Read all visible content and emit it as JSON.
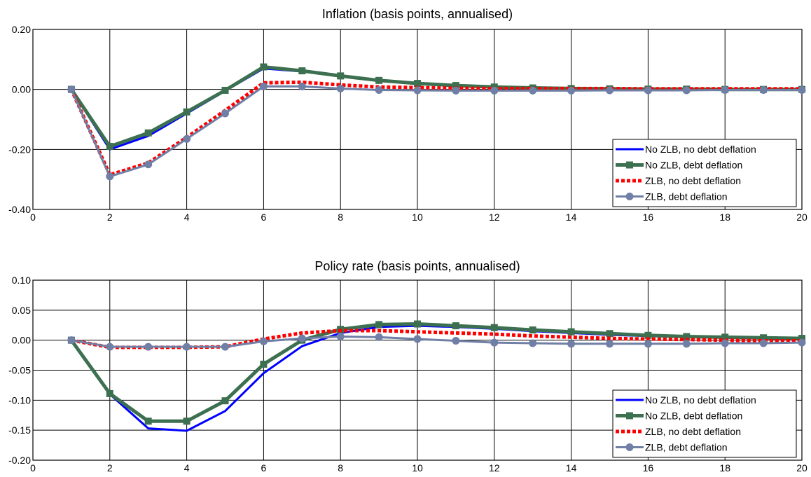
{
  "chart_data": [
    {
      "type": "line",
      "title": "Inflation (basis points, annualised)",
      "xlabel": "",
      "ylabel": "",
      "xlim": [
        0,
        20
      ],
      "ylim": [
        -0.4,
        0.2
      ],
      "xticks": [
        0,
        2,
        4,
        6,
        8,
        10,
        12,
        14,
        16,
        18,
        20
      ],
      "xtick_labels": [
        "0",
        "2",
        "4",
        "6",
        "8",
        "10",
        "12",
        "14",
        "16",
        "18",
        "20"
      ],
      "yticks": [
        -0.4,
        -0.2,
        0.0,
        0.2
      ],
      "ytick_labels": [
        "-0.40",
        "-0.20",
        "0.00",
        "0.20"
      ],
      "grid": true,
      "legend_position": "bottom-right",
      "x": [
        1,
        2,
        3,
        4,
        5,
        6,
        7,
        8,
        9,
        10,
        11,
        12,
        13,
        14,
        15,
        16,
        17,
        18,
        19,
        20
      ],
      "series": [
        {
          "name": "No ZLB, no debt deflation",
          "style": "solid",
          "marker": "none",
          "color": "#0000ff",
          "values": [
            0,
            -0.2,
            -0.155,
            -0.08,
            -0.005,
            0.07,
            0.06,
            0.045,
            0.03,
            0.02,
            0.013,
            0.008,
            0.005,
            0.003,
            0.002,
            0.001,
            0.001,
            0.0,
            0.0,
            0.0
          ]
        },
        {
          "name": "No ZLB, debt deflation",
          "style": "solid",
          "marker": "square",
          "color": "#3c7050",
          "values": [
            0,
            -0.19,
            -0.145,
            -0.075,
            -0.003,
            0.075,
            0.062,
            0.045,
            0.03,
            0.02,
            0.013,
            0.008,
            0.005,
            0.003,
            0.002,
            0.001,
            0.001,
            0.0,
            0.0,
            0.0
          ]
        },
        {
          "name": "ZLB, no debt deflation",
          "style": "dotted",
          "marker": "none",
          "color": "#ff0000",
          "values": [
            0,
            -0.285,
            -0.245,
            -0.16,
            -0.07,
            0.022,
            0.024,
            0.015,
            0.008,
            0.006,
            0.004,
            0.003,
            0.003,
            0.003,
            0.003,
            0.002,
            0.002,
            0.002,
            0.002,
            0.002
          ]
        },
        {
          "name": "ZLB, debt deflation",
          "style": "solid",
          "marker": "circle",
          "color": "#6f7fa5",
          "values": [
            0,
            -0.29,
            -0.25,
            -0.165,
            -0.08,
            0.01,
            0.01,
            0.003,
            -0.002,
            -0.003,
            -0.004,
            -0.004,
            -0.004,
            -0.004,
            -0.003,
            -0.003,
            -0.003,
            -0.002,
            -0.002,
            -0.002
          ]
        }
      ]
    },
    {
      "type": "line",
      "title": "Policy rate (basis points, annualised)",
      "xlabel": "",
      "ylabel": "",
      "xlim": [
        0,
        20
      ],
      "ylim": [
        -0.2,
        0.1
      ],
      "xticks": [
        0,
        2,
        4,
        6,
        8,
        10,
        12,
        14,
        16,
        18,
        20
      ],
      "xtick_labels": [
        "0",
        "2",
        "4",
        "6",
        "8",
        "10",
        "12",
        "14",
        "16",
        "18",
        "20"
      ],
      "yticks": [
        -0.2,
        -0.15,
        -0.1,
        -0.05,
        0.0,
        0.05,
        0.1
      ],
      "ytick_labels": [
        "-0.20",
        "-0.15",
        "-0.10",
        "-0.05",
        "0.00",
        "0.05",
        "0.10"
      ],
      "grid": true,
      "legend_position": "bottom-right",
      "x": [
        1,
        2,
        3,
        4,
        5,
        6,
        7,
        8,
        9,
        10,
        11,
        12,
        13,
        14,
        15,
        16,
        17,
        18,
        19,
        20
      ],
      "series": [
        {
          "name": "No ZLB, no debt deflation",
          "style": "solid",
          "marker": "none",
          "color": "#0000ff",
          "values": [
            0,
            -0.09,
            -0.147,
            -0.151,
            -0.118,
            -0.055,
            -0.01,
            0.012,
            0.022,
            0.024,
            0.022,
            0.019,
            0.015,
            0.012,
            0.009,
            0.007,
            0.005,
            0.004,
            0.003,
            0.002
          ]
        },
        {
          "name": "No ZLB, debt deflation",
          "style": "solid",
          "marker": "square",
          "color": "#3c7050",
          "values": [
            0,
            -0.089,
            -0.135,
            -0.135,
            -0.101,
            -0.04,
            0.0,
            0.018,
            0.026,
            0.027,
            0.024,
            0.021,
            0.017,
            0.014,
            0.011,
            0.008,
            0.006,
            0.005,
            0.004,
            0.003
          ]
        },
        {
          "name": "ZLB, no debt deflation",
          "style": "dotted",
          "marker": "none",
          "color": "#ff0000",
          "values": [
            0,
            -0.012,
            -0.012,
            -0.012,
            -0.011,
            0.002,
            0.012,
            0.016,
            0.016,
            0.014,
            0.012,
            0.01,
            0.007,
            0.005,
            0.003,
            0.002,
            0.001,
            0.0,
            -0.001,
            -0.001
          ]
        },
        {
          "name": "ZLB, debt deflation",
          "style": "solid",
          "marker": "circle",
          "color": "#6f7fa5",
          "values": [
            0,
            -0.011,
            -0.011,
            -0.011,
            -0.011,
            -0.002,
            0.003,
            0.006,
            0.005,
            0.002,
            -0.001,
            -0.004,
            -0.005,
            -0.006,
            -0.006,
            -0.006,
            -0.006,
            -0.005,
            -0.005,
            -0.004
          ]
        }
      ]
    }
  ]
}
